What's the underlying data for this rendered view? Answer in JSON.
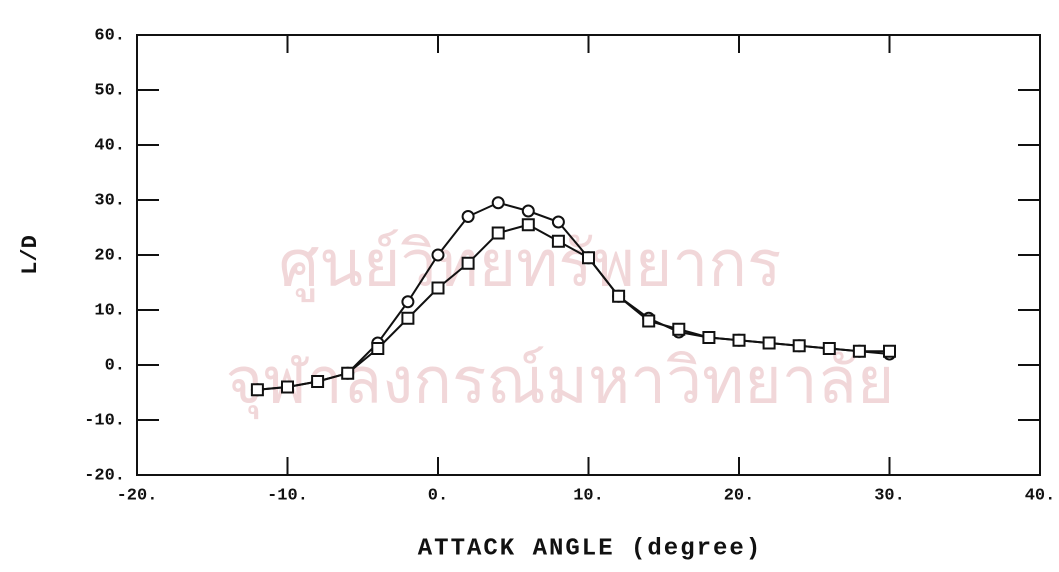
{
  "watermark": [
    "ศูนย์วิทยทรัพยากร",
    "จุฬาลงกรณ์มหาวิทยาลัย"
  ],
  "chart_data": {
    "type": "line",
    "x_label": "ATTACK ANGLE (degree)",
    "y_label": "L/D",
    "x": [
      -12,
      -10,
      -8,
      -6,
      -4,
      -2,
      0,
      2,
      4,
      6,
      8,
      10,
      12,
      14,
      16,
      18,
      20,
      22,
      24,
      26,
      28,
      30
    ],
    "series": [
      {
        "marker": "circle",
        "color": "#111111",
        "values": [
          -4.5,
          -4,
          -3,
          -1.5,
          4,
          11.5,
          20,
          27,
          29.5,
          28,
          26,
          19.5,
          12.5,
          8.5,
          6,
          5,
          4.5,
          4,
          3.5,
          3,
          2.5,
          2
        ]
      },
      {
        "marker": "square",
        "color": "#111111",
        "values": [
          -4.5,
          -4,
          -3,
          -1.5,
          3,
          8.5,
          14,
          18.5,
          24,
          25.5,
          22.5,
          19.5,
          12.5,
          8,
          6.5,
          5,
          4.5,
          4,
          3.5,
          3,
          2.5,
          2.5
        ]
      }
    ],
    "xlim": [
      -20,
      40
    ],
    "ylim": [
      -20,
      60
    ],
    "xticks": [
      {
        "value": -20,
        "label": "-20."
      },
      {
        "value": -10,
        "label": "-10."
      },
      {
        "value": 0,
        "label": "0."
      },
      {
        "value": 10,
        "label": "10."
      },
      {
        "value": 20,
        "label": "20."
      },
      {
        "value": 30,
        "label": "30."
      },
      {
        "value": 40,
        "label": "40."
      }
    ],
    "yticks": [
      {
        "value": -20,
        "label": "-20."
      },
      {
        "value": -10,
        "label": "-10."
      },
      {
        "value": 0,
        "label": "0."
      },
      {
        "value": 10,
        "label": "10."
      },
      {
        "value": 20,
        "label": "20."
      },
      {
        "value": 30,
        "label": "30."
      },
      {
        "value": 40,
        "label": "40."
      },
      {
        "value": 50,
        "label": "50."
      },
      {
        "value": 60,
        "label": "60."
      }
    ],
    "grid": false
  }
}
